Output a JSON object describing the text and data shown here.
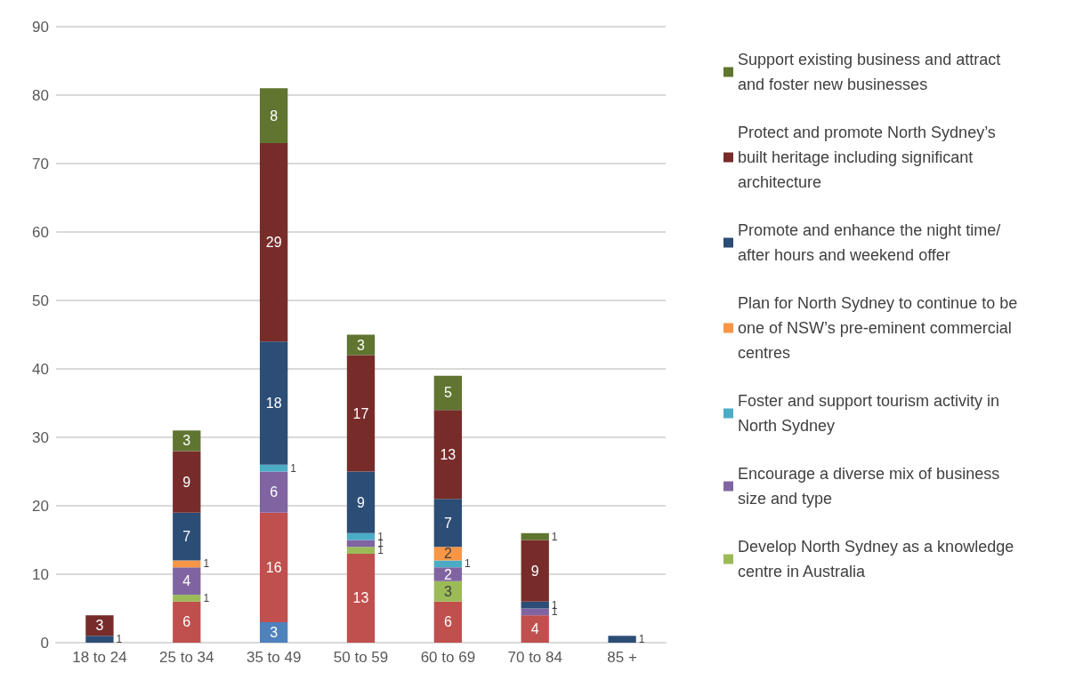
{
  "chart_data": {
    "type": "bar",
    "stacked": true,
    "categories": [
      "18 to 24",
      "25 to 34",
      "35 to 49",
      "50 to 59",
      "60 to 69",
      "70 to 84",
      "85 +"
    ],
    "series": [
      {
        "color": "#4f81bd",
        "values": [
          null,
          null,
          3,
          null,
          null,
          null,
          null
        ]
      },
      {
        "color": "#c0504d",
        "values": [
          null,
          6,
          16,
          13,
          6,
          4,
          null
        ]
      },
      {
        "name": "Develop North Sydney as a knowledge centre in Australia",
        "color": "#9bbb59",
        "values": [
          null,
          1,
          null,
          1,
          3,
          null,
          null
        ]
      },
      {
        "name": "Encourage a diverse mix of business size and type",
        "color": "#8064a2",
        "values": [
          null,
          4,
          6,
          1,
          2,
          1,
          null
        ]
      },
      {
        "name": "Foster and support tourism activity in North Sydney",
        "color": "#4bacc6",
        "values": [
          null,
          null,
          1,
          1,
          1,
          null,
          null
        ]
      },
      {
        "name": "Plan for North Sydney to continue to be one of NSW’s pre-eminent commercial centres",
        "color": "#f79646",
        "values": [
          null,
          1,
          null,
          null,
          2,
          null,
          null
        ]
      },
      {
        "name": "Promote and enhance the night time/after hours and weekend offer",
        "color": "#2c4d75",
        "values": [
          1,
          7,
          18,
          9,
          7,
          1,
          1
        ]
      },
      {
        "name": "Protect and promote North Sydney’s built heritage including significant architecture",
        "color": "#772c2a",
        "values": [
          3,
          9,
          29,
          17,
          13,
          9,
          null
        ]
      },
      {
        "name": "Support existing business and attract and foster new businesses",
        "color": "#5f7530",
        "values": [
          null,
          3,
          8,
          3,
          5,
          1,
          null
        ]
      }
    ],
    "ylim": [
      0,
      90
    ],
    "yticks": [
      0,
      10,
      20,
      30,
      40,
      50,
      60,
      70,
      80,
      90
    ],
    "grid": "y",
    "legend": "right",
    "data_labels": true
  }
}
